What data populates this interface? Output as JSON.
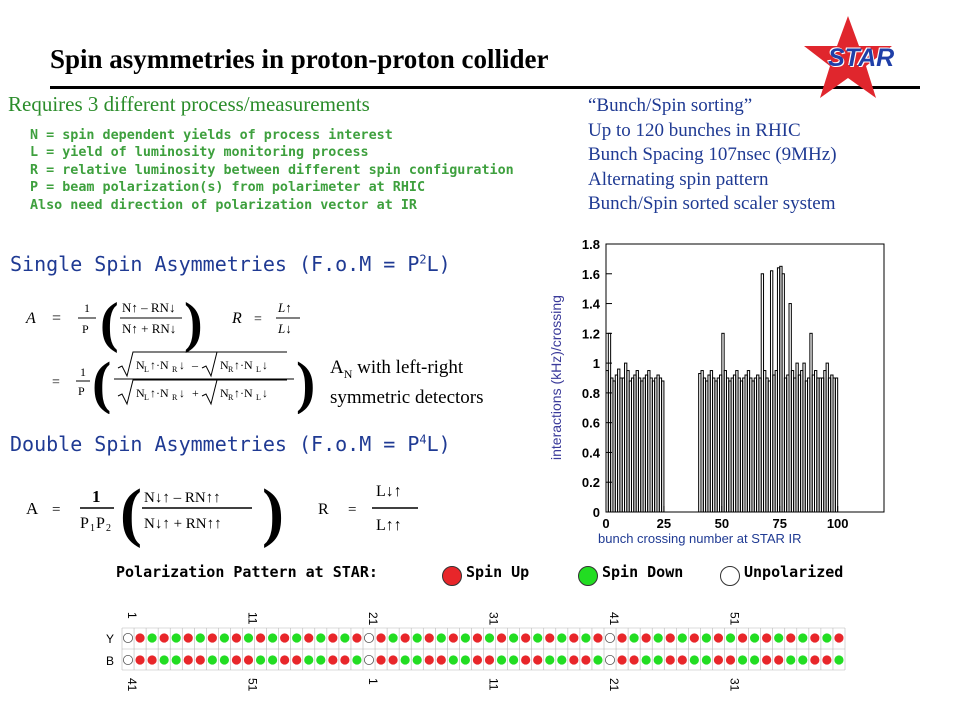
{
  "header": {
    "title": "Spin asymmetries in proton-proton collider",
    "logo_text": "STAR",
    "logo_color": "#e0262d"
  },
  "requires": {
    "heading": "Requires 3 different process/measurements",
    "items": [
      "N = spin dependent yields of process interest",
      "L  = yield of luminosity monitoring process",
      "R  = relative luminosity between different spin configuration",
      "P  = beam polarization(s)  from polarimeter at RHIC",
      "Also need direction of polarization vector at IR"
    ]
  },
  "bunch_info": [
    "“Bunch/Spin sorting”",
    "Up to 120 bunches in RHIC",
    "Bunch Spacing 107nsec (9MHz)",
    "Alternating spin pattern",
    "Bunch/Spin sorted scaler system"
  ],
  "single_spin": {
    "heading_text": "Single Spin Asymmetries (F.o.M = P",
    "heading_sup": "2",
    "heading_tail": "L)",
    "an_note_line1": "A",
    "an_note_sub": "N",
    "an_note_rest": " with left-right",
    "an_note_line2": "symmetric detectors"
  },
  "double_spin": {
    "heading_text": "Double Spin Asymmetries (F.o.M = P",
    "heading_sup": "4",
    "heading_tail": "L)"
  },
  "legend": {
    "title": "Polarization Pattern at STAR:",
    "spin_up": "Spin Up",
    "spin_down": "Spin Down",
    "unpolarized": "Unpolarized",
    "colors": {
      "up": "#e8262a",
      "down": "#22dd22",
      "unpolarized": "#ffffff"
    }
  },
  "pattern": {
    "row_labels": [
      "Y",
      "B"
    ],
    "top_numbers": [
      "1",
      "11",
      "21",
      "31",
      "41",
      "51"
    ],
    "bottom_numbers": [
      "41",
      "51",
      "1",
      "11",
      "21",
      "31"
    ],
    "Y": "OrgrgrgrgrgrgrgrgrgrOrgrgrgrgrgrgrgrgrgrOrgrgrgrgrgrgrgrgrgr",
    "B": "OrrggrrggrrggrrggrrgOrrggrrggrrggrrggrrgOrrggrrggrrggrrggrrg"
  },
  "chart_data": {
    "type": "bar",
    "title": "",
    "xlabel": "bunch crossing number at STAR IR",
    "ylabel": "interactions (kHz)/crossing",
    "xlim": [
      0,
      120
    ],
    "ylim": [
      0,
      1.8
    ],
    "xticks": [
      "0",
      "25",
      "50",
      "75",
      "100"
    ],
    "yticks": [
      "0",
      "0.2",
      "0.4",
      "0.6",
      "0.8",
      "1",
      "1.2",
      "1.4",
      "1.6",
      "1.8"
    ],
    "x": [
      1,
      2,
      3,
      4,
      5,
      6,
      7,
      8,
      9,
      10,
      11,
      12,
      13,
      14,
      15,
      16,
      17,
      18,
      19,
      20,
      21,
      22,
      23,
      24,
      25,
      26,
      27,
      28,
      29,
      30,
      31,
      32,
      33,
      34,
      35,
      36,
      37,
      38,
      39,
      40,
      41,
      42,
      43,
      44,
      45,
      46,
      47,
      48,
      49,
      50,
      51,
      52,
      53,
      54,
      55,
      56,
      57,
      58,
      59,
      60,
      61,
      62,
      63,
      64,
      65,
      66,
      67,
      68,
      69,
      70,
      71,
      72,
      73,
      74,
      75,
      76,
      77,
      78,
      79,
      80,
      81,
      82,
      83,
      84,
      85,
      86,
      87,
      88,
      89,
      90,
      91,
      92,
      93,
      94,
      95,
      96,
      97,
      98,
      99,
      100,
      101,
      102,
      103,
      104,
      105,
      106,
      107,
      108,
      109,
      110,
      111,
      112,
      113,
      114,
      115,
      116,
      117,
      118,
      119,
      120
    ],
    "values": [
      0.95,
      1.2,
      0.9,
      0.88,
      0.92,
      0.96,
      0.9,
      0.9,
      1.0,
      0.95,
      0.88,
      0.9,
      0.92,
      0.95,
      0.9,
      0.88,
      0.9,
      0.92,
      0.95,
      0.9,
      0.88,
      0.9,
      0.92,
      0.9,
      0.88,
      0,
      0,
      0,
      0,
      0,
      0,
      0,
      0,
      0,
      0,
      0,
      0,
      0,
      0,
      0,
      0.93,
      0.95,
      0.9,
      0.88,
      0.92,
      0.95,
      0.9,
      0.88,
      0.9,
      0.92,
      1.2,
      0.95,
      0.9,
      0.88,
      0.9,
      0.92,
      0.95,
      0.9,
      0.88,
      0.9,
      0.92,
      0.95,
      0.9,
      0.88,
      0.9,
      0.92,
      0.9,
      1.6,
      0.95,
      0.9,
      0.88,
      1.62,
      0.92,
      0.95,
      1.64,
      1.65,
      1.6,
      0.9,
      0.92,
      1.4,
      0.95,
      0.9,
      1.0,
      0.92,
      0.95,
      1.0,
      0.88,
      0.9,
      1.2,
      0.92,
      0.95,
      0.9,
      0.9,
      0.9,
      0.95,
      1.0,
      0.9,
      0.92,
      0.9,
      0.9,
      0,
      0,
      0,
      0,
      0,
      0,
      0,
      0,
      0,
      0,
      0,
      0,
      0,
      0,
      0,
      0,
      0,
      0,
      0,
      0
    ]
  }
}
